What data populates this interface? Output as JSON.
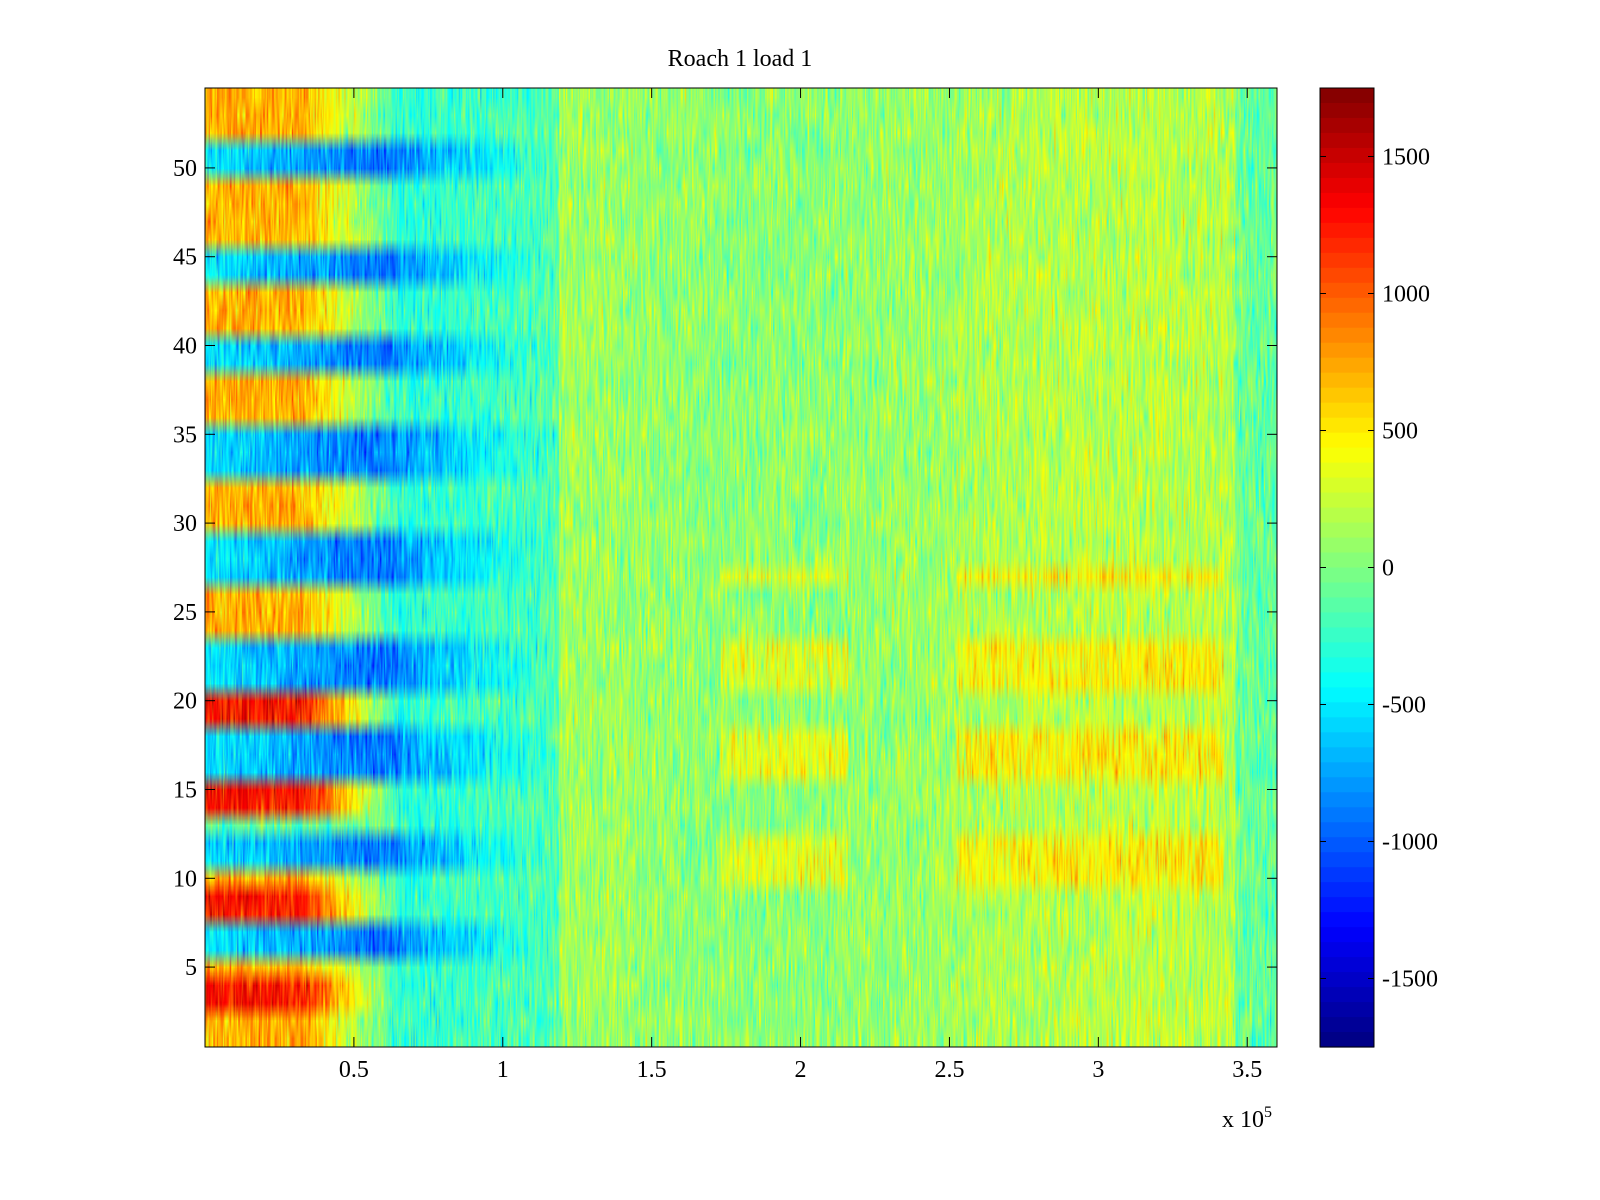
{
  "chart_data": {
    "type": "heatmap",
    "title": "Roach 1 load 1",
    "xlabel": "",
    "ylabel": "",
    "x_exponent_label": "x 10",
    "x_exponent_power": "5",
    "xlim": [
      0,
      360000
    ],
    "ylim": [
      0.5,
      54.5
    ],
    "x_ticks": [
      0.5,
      1,
      1.5,
      2,
      2.5,
      3,
      3.5
    ],
    "x_tick_labels": [
      "0.5",
      "1",
      "1.5",
      "2",
      "2.5",
      "3",
      "3.5"
    ],
    "y_ticks": [
      5,
      10,
      15,
      20,
      25,
      30,
      35,
      40,
      45,
      50
    ],
    "y_tick_labels": [
      "5",
      "10",
      "15",
      "20",
      "25",
      "30",
      "35",
      "40",
      "45",
      "50"
    ],
    "rows": 54,
    "colorbar": {
      "colormap": "jet",
      "clim": [
        -1750,
        1750
      ],
      "ticks": [
        1500,
        1000,
        500,
        0,
        -500,
        -1000,
        -1500
      ],
      "tick_labels": [
        "1500",
        "1000",
        "500",
        "0",
        "-500",
        "-1000",
        "-1500"
      ]
    },
    "strong_rows_early_positive": [
      1,
      2,
      3,
      4,
      5,
      8,
      9,
      10,
      14,
      15,
      19,
      20,
      24,
      25,
      26,
      30,
      31,
      32,
      36,
      37,
      38,
      41,
      42,
      43,
      46,
      47,
      48,
      49,
      52,
      53,
      54
    ],
    "strong_rows_early_negative": [
      6,
      7,
      11,
      12,
      16,
      17,
      18,
      21,
      22,
      23,
      27,
      28,
      29,
      33,
      34,
      35,
      39,
      40,
      44,
      45,
      50,
      51
    ],
    "grid": false,
    "legend": "none"
  }
}
